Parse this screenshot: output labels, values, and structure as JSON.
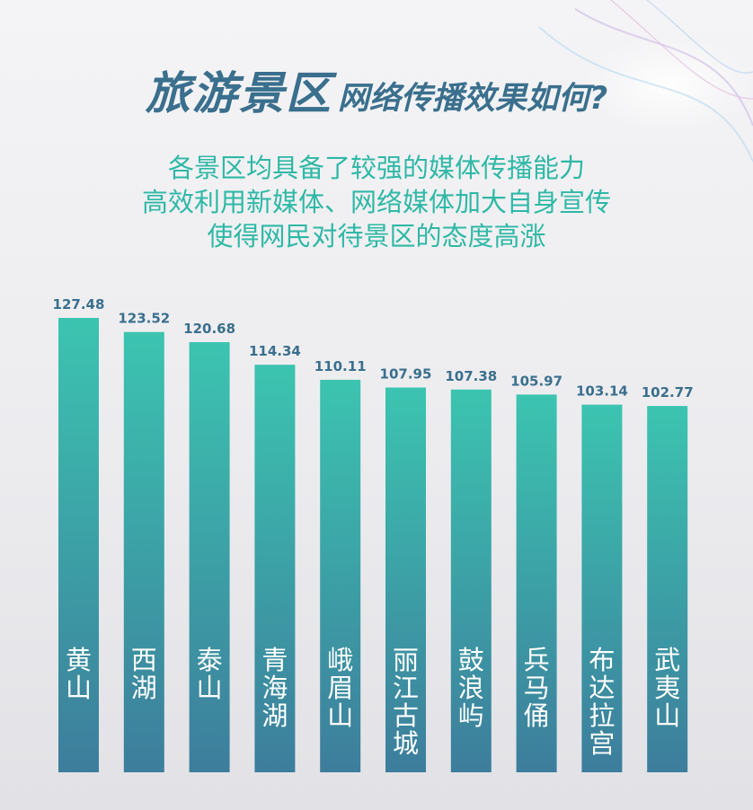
{
  "header": {
    "title_main": "旅游景区",
    "title_sub": "网络传播效果如何?",
    "subtitle_lines": [
      "各景区均具备了较强的媒体传播能力",
      "高效利用新媒体、网络媒体加大自身宣传",
      "使得网民对待景区的态度高涨"
    ]
  },
  "chart_data": {
    "type": "bar",
    "title": "",
    "xlabel": "",
    "ylabel": "",
    "categories": [
      "黄山",
      "西湖",
      "泰山",
      "青海湖",
      "峨眉山",
      "丽江古城",
      "鼓浪屿",
      "兵马俑",
      "布达拉宫",
      "武夷山"
    ],
    "values": [
      127.48,
      123.52,
      120.68,
      114.34,
      110.11,
      107.95,
      107.38,
      105.97,
      103.14,
      102.77
    ],
    "value_labels": [
      "127.48",
      "123.52",
      "120.68",
      "114.34",
      "110.11",
      "107.95",
      "107.38",
      "105.97",
      "103.14",
      "102.77"
    ],
    "ylim": [
      0,
      127.48
    ],
    "grid": false,
    "legend": "none",
    "bar_color_top": "#3cc4b0",
    "bar_color_bottom": "#3d7d9c",
    "label_color": "#3a6f8d"
  }
}
